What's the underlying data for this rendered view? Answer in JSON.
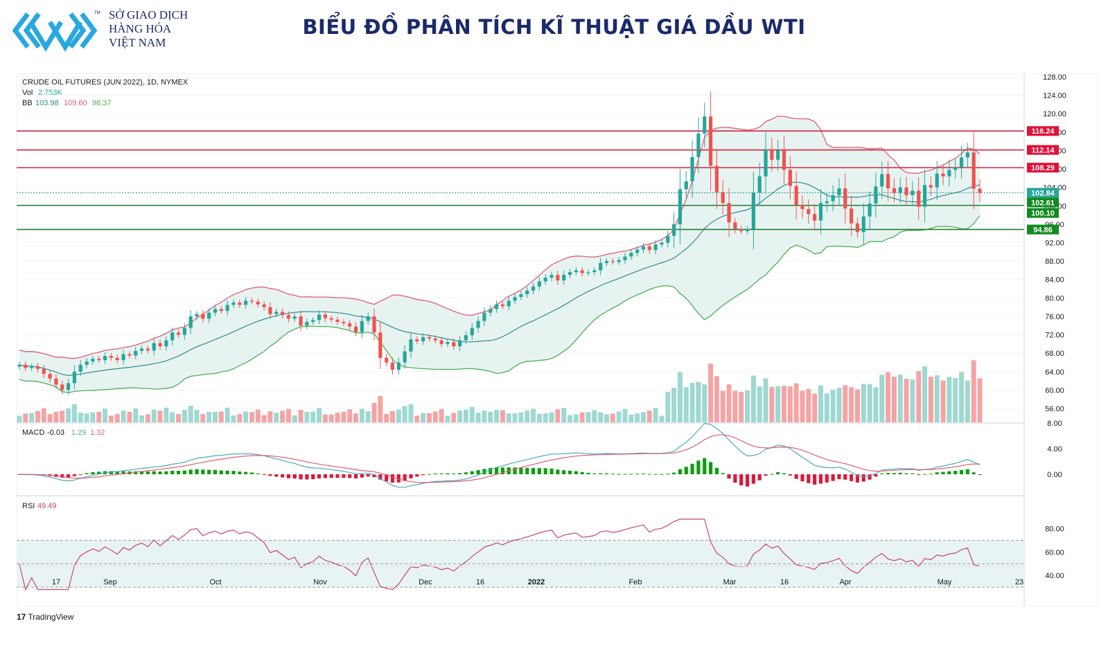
{
  "header": {
    "brand_line1": "SỞ GIAO DỊCH",
    "brand_line2": "HÀNG HÓA",
    "brand_line3": "VIỆT NAM",
    "trademark": "TM",
    "title": "BIỂU ĐỒ PHÂN TÍCH KĨ THUẬT GIÁ DẦU WTI",
    "brand_color": "#1b2a6b",
    "logo_color": "#29a8e0"
  },
  "legend": {
    "symbol": "CRUDE OIL FUTURES (JUN 2022), 1D, NYMEX",
    "vol_label": "Vol",
    "vol_value": "2.753K",
    "bb_label": "BB",
    "bb_basis": "103.98",
    "bb_upper": "109.60",
    "bb_lower": "98.37",
    "macd_label": "MACD",
    "macd_v1": "-0.03",
    "macd_v2": "1.29",
    "macd_v3": "1.32",
    "rsi_label": "RSI",
    "rsi_value": "49.49"
  },
  "footer": {
    "logo_glyph": "17",
    "brand": "TradingView"
  },
  "colors": {
    "up": "#26a69a",
    "down": "#ef5350",
    "bb_upper": "#e05d73",
    "bb_lower": "#4caf50",
    "bb_basis": "#2f8b8b",
    "bb_fill": "#e7f3f1",
    "resistance": "#d0253d",
    "support": "#1e7d2e",
    "macd_line": "#4aa8c0",
    "signal_line": "#e05d73",
    "hist_pos": "#0f9d0f",
    "hist_neg": "#d81b3a",
    "rsi_line": "#c7456a",
    "rsi_band": "#e8f3f4"
  },
  "chart_data": {
    "type": "candlestick",
    "price_axis": {
      "min": 56,
      "max": 128,
      "ticks": [
        "56.00",
        "60.00",
        "64.00",
        "68.00",
        "72.00",
        "76.00",
        "80.00",
        "84.00",
        "88.00",
        "92.00",
        "96.00",
        "100.00",
        "104.00",
        "108.00",
        "112.00",
        "116.00",
        "120.00",
        "124.00",
        "128.00"
      ]
    },
    "time_ticks": [
      "17",
      "Sep",
      "Oct",
      "Nov",
      "Dec",
      "16",
      "2022",
      "Feb",
      "Mar",
      "16",
      "Apr",
      "May",
      "23"
    ],
    "horizontal_levels": [
      {
        "value": 116.24,
        "label": "116.24",
        "kind": "resistance"
      },
      {
        "value": 112.14,
        "label": "112.14",
        "kind": "resistance"
      },
      {
        "value": 108.29,
        "label": "108.29",
        "kind": "resistance"
      },
      {
        "value": 102.84,
        "label": "102.84",
        "kind": "current"
      },
      {
        "value": 100.1,
        "label": "100.10",
        "kind": "support"
      },
      {
        "value": 94.86,
        "label": "94.86",
        "kind": "support"
      }
    ],
    "price_tags_extra": [
      {
        "value": 102.61,
        "label": "102.61",
        "kind": "support"
      }
    ],
    "close_path": [
      65.5,
      64.8,
      65.2,
      64.6,
      63.5,
      62.5,
      61.2,
      60.0,
      61.5,
      64.0,
      65.5,
      66.2,
      66.8,
      66.5,
      67.4,
      67.0,
      66.5,
      67.8,
      67.5,
      68.5,
      69.0,
      68.6,
      70.2,
      69.5,
      70.8,
      72.5,
      72.0,
      73.5,
      76.0,
      76.5,
      75.5,
      76.8,
      77.6,
      77.2,
      78.5,
      79.0,
      78.5,
      79.4,
      79.2,
      78.6,
      78.0,
      76.5,
      77.0,
      76.3,
      75.5,
      76.0,
      74.0,
      74.8,
      75.2,
      76.4,
      75.6,
      75.3,
      74.8,
      74.5,
      73.8,
      72.6,
      75.0,
      76.0,
      72.5,
      67.0,
      66.0,
      64.4,
      66.0,
      68.4,
      71.0,
      70.6,
      71.5,
      71.2,
      70.8,
      70.0,
      70.4,
      69.5,
      70.8,
      71.9,
      73.5,
      75.0,
      76.8,
      77.6,
      78.6,
      78.2,
      79.4,
      80.2,
      80.8,
      81.6,
      82.5,
      83.6,
      84.4,
      85.0,
      83.8,
      85.0,
      85.6,
      86.0,
      85.4,
      85.6,
      86.0,
      87.6,
      88.0,
      87.8,
      88.2,
      89.0,
      89.8,
      90.5,
      91.2,
      90.4,
      91.6,
      92.0,
      93.5,
      96.0,
      103.6,
      105.3,
      110.6,
      115.7,
      119.4,
      108.7,
      103.0,
      100.6,
      96.4,
      95.0,
      94.5,
      95.0,
      102.9,
      106.4,
      112.3,
      110.0,
      112.0,
      107.8,
      104.3,
      100.2,
      99.3,
      98.2,
      96.8,
      100.6,
      101.0,
      102.3,
      103.8,
      99.4,
      96.2,
      94.3,
      97.7,
      100.5,
      104.2,
      106.9,
      103.8,
      102.8,
      104.0,
      102.3,
      103.3,
      99.8,
      104.5,
      104.0,
      107.0,
      106.4,
      107.8,
      108.3,
      110.5,
      111.6,
      103.7,
      102.8
    ]
  }
}
